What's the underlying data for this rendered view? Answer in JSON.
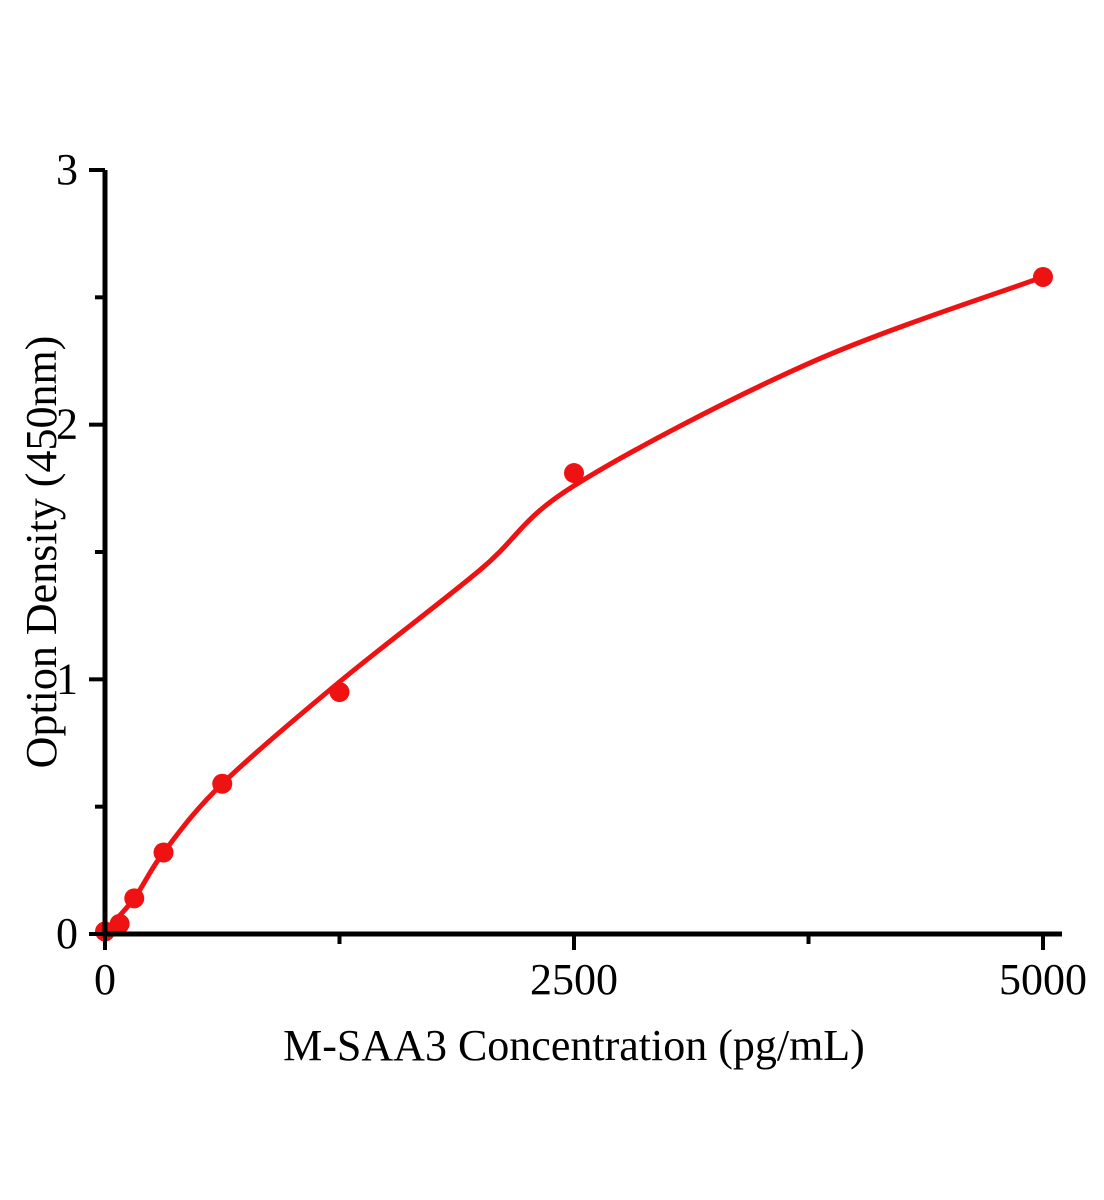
{
  "chart_data": {
    "type": "scatter",
    "title": "",
    "xlabel": "M-SAA3 Concentration（pg/mL）",
    "ylabel": "Option Density（450nm）",
    "xlim": [
      0,
      5000
    ],
    "ylim": [
      0,
      3
    ],
    "x_major_ticks": [
      0,
      2500,
      5000
    ],
    "x_minor_ticks": [
      1250,
      3750
    ],
    "y_major_ticks": [
      0,
      1,
      2,
      3
    ],
    "y_minor_ticks": [
      0.5,
      1.5,
      2.5
    ],
    "grid": false,
    "legend": null,
    "axis_color": "#000000",
    "background_color": "#ffffff",
    "series": [
      {
        "name": "standard-data-points",
        "type": "scatter",
        "color": "#ee1212",
        "marker": "circle",
        "marker_radius": 10,
        "x": [
          0,
          78,
          156,
          312,
          625,
          1250,
          2500,
          5000
        ],
        "y": [
          0.01,
          0.04,
          0.14,
          0.32,
          0.59,
          0.95,
          1.81,
          2.58
        ]
      },
      {
        "name": "fitted-curve",
        "type": "line",
        "color": "#ee1212",
        "stroke_width": 5,
        "x": [
          0,
          156,
          312,
          625,
          1250,
          2000,
          2500,
          3750,
          5000
        ],
        "y": [
          0.01,
          0.14,
          0.32,
          0.59,
          0.99,
          1.43,
          1.76,
          2.24,
          2.58
        ]
      }
    ]
  }
}
